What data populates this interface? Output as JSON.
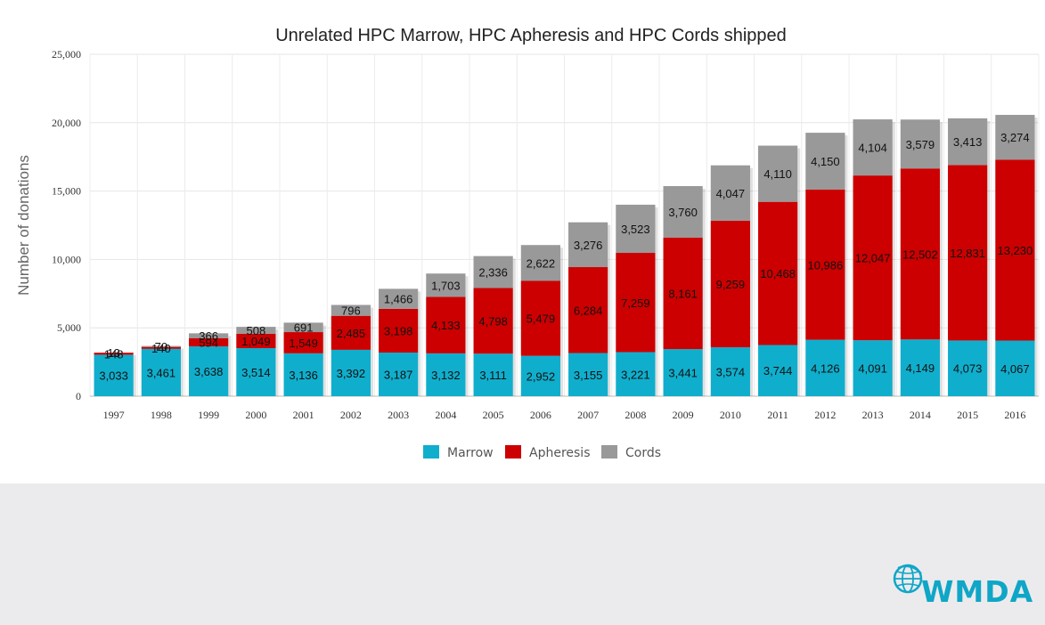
{
  "chart_data": {
    "type": "bar",
    "stacked": true,
    "title": "Unrelated HPC Marrow, HPC Apheresis and HPC Cords shipped",
    "ylabel": "Number of donations",
    "xlabel": "",
    "ylim": [
      0,
      25000
    ],
    "yticks": [
      "0",
      "5,000",
      "10,000",
      "15,000",
      "20,000",
      "25,000"
    ],
    "ytick_values": [
      0,
      5000,
      10000,
      15000,
      20000,
      25000
    ],
    "grid": true,
    "legend_position": "bottom-center",
    "categories": [
      "1997",
      "1998",
      "1999",
      "2000",
      "2001",
      "2002",
      "2003",
      "2004",
      "2005",
      "2006",
      "2007",
      "2008",
      "2009",
      "2010",
      "2011",
      "2012",
      "2013",
      "2014",
      "2015",
      "2016"
    ],
    "series": [
      {
        "name": "Marrow",
        "color": "#10aecd",
        "values": [
          3033,
          3461,
          3638,
          3514,
          3136,
          3392,
          3187,
          3132,
          3111,
          2952,
          3155,
          3221,
          3441,
          3574,
          3744,
          4126,
          4091,
          4149,
          4073,
          4067
        ],
        "labels": [
          "3,033",
          "3,461",
          "3,638",
          "3,514",
          "3,136",
          "3,392",
          "3,187",
          "3,132",
          "3,111",
          "2,952",
          "3,155",
          "3,221",
          "3,441",
          "3,574",
          "3,744",
          "4,126",
          "4,091",
          "4,149",
          "4,073",
          "4,067"
        ]
      },
      {
        "name": "Apheresis",
        "color": "#cc0000",
        "values": [
          148,
          140,
          594,
          1049,
          1549,
          2485,
          3198,
          4133,
          4798,
          5479,
          6284,
          7259,
          8161,
          9259,
          10468,
          10986,
          12047,
          12502,
          12831,
          13230
        ],
        "labels": [
          "148",
          "140",
          "594",
          "1,049",
          "1,549",
          "2,485",
          "3,198",
          "4,133",
          "4,798",
          "5,479",
          "6,284",
          "7,259",
          "8,161",
          "9,259",
          "10,468",
          "10,986",
          "12,047",
          "12,502",
          "12,831",
          "13,230"
        ]
      },
      {
        "name": "Cords",
        "color": "#999999",
        "values": [
          13,
          70,
          366,
          508,
          691,
          796,
          1466,
          1703,
          2336,
          2622,
          3276,
          3523,
          3760,
          4047,
          4110,
          4150,
          4104,
          3579,
          3413,
          3274
        ],
        "labels": [
          "13",
          "70",
          "366",
          "508",
          "691",
          "796",
          "1,466",
          "1,703",
          "2,336",
          "2,622",
          "3,276",
          "3,523",
          "3,760",
          "4,047",
          "4,110",
          "4,150",
          "4,104",
          "3,579",
          "3,413",
          "3,274"
        ]
      }
    ]
  },
  "logo": {
    "text": "WMDA"
  },
  "colors": {
    "footer_band": "#ebebed",
    "logo": "#0fa6c7"
  }
}
